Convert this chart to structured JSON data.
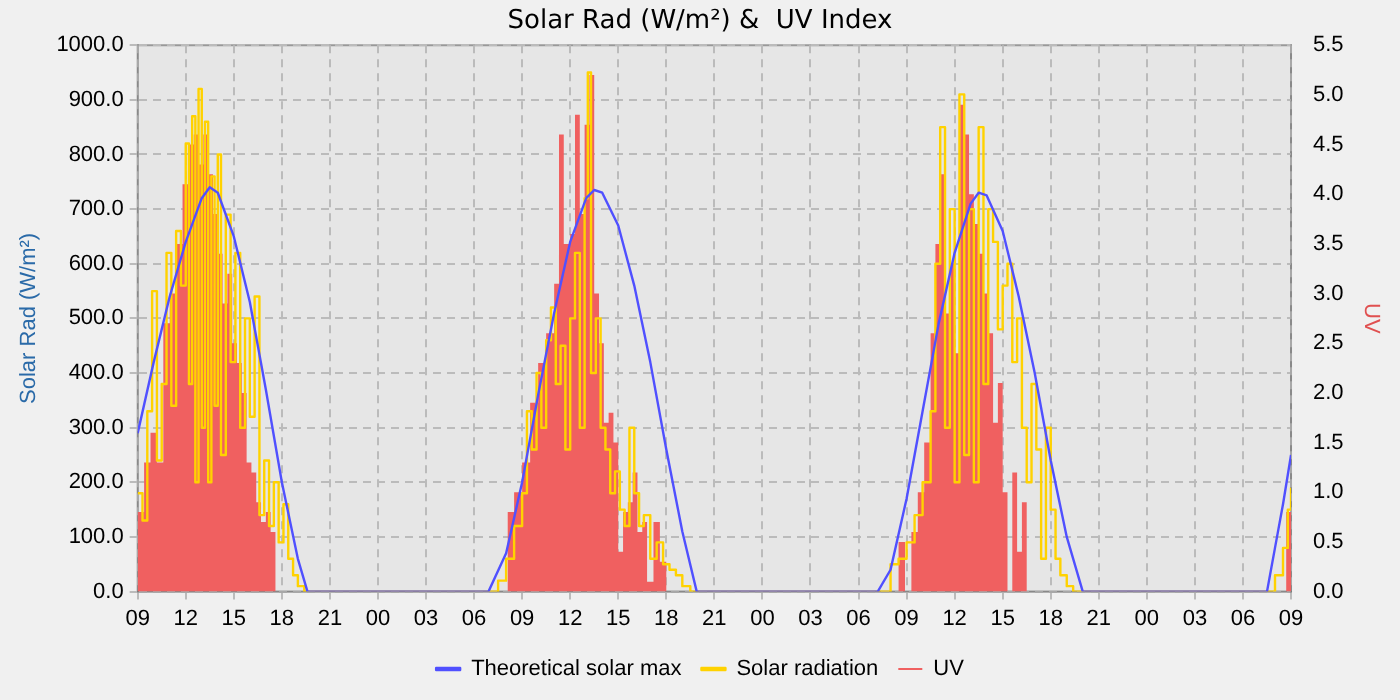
{
  "chart_data": {
    "type": "step",
    "title": "Solar Rad (W/m²) &  UV Index",
    "ylabel": "Solar Rad (W/m²)",
    "y2label": "UV",
    "xlim": [
      9,
      81
    ],
    "xticks": [
      {
        "value": 9,
        "label": "09"
      },
      {
        "value": 12,
        "label": "12"
      },
      {
        "value": 15,
        "label": "15"
      },
      {
        "value": 18,
        "label": "18"
      },
      {
        "value": 21,
        "label": "21"
      },
      {
        "value": 24,
        "label": "00"
      },
      {
        "value": 27,
        "label": "03"
      },
      {
        "value": 30,
        "label": "06"
      },
      {
        "value": 33,
        "label": "09"
      },
      {
        "value": 36,
        "label": "12"
      },
      {
        "value": 39,
        "label": "15"
      },
      {
        "value": 42,
        "label": "18"
      },
      {
        "value": 45,
        "label": "21"
      },
      {
        "value": 48,
        "label": "00"
      },
      {
        "value": 51,
        "label": "03"
      },
      {
        "value": 54,
        "label": "06"
      },
      {
        "value": 57,
        "label": "09"
      },
      {
        "value": 60,
        "label": "12"
      },
      {
        "value": 63,
        "label": "15"
      },
      {
        "value": 66,
        "label": "18"
      },
      {
        "value": 69,
        "label": "21"
      },
      {
        "value": 72,
        "label": "00"
      },
      {
        "value": 75,
        "label": "03"
      },
      {
        "value": 78,
        "label": "06"
      },
      {
        "value": 81,
        "label": "09"
      }
    ],
    "ylim": [
      0,
      1000
    ],
    "yticks": [
      {
        "value": 0,
        "label": "0.0"
      },
      {
        "value": 100,
        "label": "100.0"
      },
      {
        "value": 200,
        "label": "200.0"
      },
      {
        "value": 300,
        "label": "300.0"
      },
      {
        "value": 400,
        "label": "400.0"
      },
      {
        "value": 500,
        "label": "500.0"
      },
      {
        "value": 600,
        "label": "600.0"
      },
      {
        "value": 700,
        "label": "700.0"
      },
      {
        "value": 800,
        "label": "800.0"
      },
      {
        "value": 900,
        "label": "900.0"
      },
      {
        "value": 1000,
        "label": "1000.0"
      }
    ],
    "y2lim": [
      0,
      5.5
    ],
    "y2ticks": [
      {
        "value": 0,
        "label": "0.0"
      },
      {
        "value": 0.5,
        "label": "0.5"
      },
      {
        "value": 1,
        "label": "1.0"
      },
      {
        "value": 1.5,
        "label": "1.5"
      },
      {
        "value": 2,
        "label": "2.0"
      },
      {
        "value": 2.5,
        "label": "2.5"
      },
      {
        "value": 3,
        "label": "3.0"
      },
      {
        "value": 3.5,
        "label": "3.5"
      },
      {
        "value": 4,
        "label": "4.0"
      },
      {
        "value": 4.5,
        "label": "4.5"
      },
      {
        "value": 5,
        "label": "5.0"
      },
      {
        "value": 5.5,
        "label": "5.5"
      }
    ],
    "grid": true,
    "legend": "bottom",
    "series": [
      {
        "name": "UV",
        "type": "area",
        "axis": "y2",
        "color": "#f06060",
        "x": [
          9,
          9.4,
          9.8,
          10.2,
          10.6,
          11,
          11.4,
          11.8,
          12.2,
          12.5,
          12.8,
          13.1,
          13.4,
          13.7,
          14,
          14.3,
          14.6,
          14.9,
          15.2,
          15.5,
          15.8,
          16.1,
          16.4,
          16.7,
          17,
          17.3,
          17.6,
          31.9,
          32.1,
          32.5,
          33,
          33.5,
          34,
          34.5,
          35,
          35.3,
          35.6,
          36,
          36.3,
          36.6,
          36.9,
          37.2,
          37.5,
          37.8,
          38.1,
          38.4,
          38.7,
          39,
          39.3,
          39.6,
          39.9,
          40.2,
          40.5,
          40.8,
          41.2,
          41.6,
          42,
          56.5,
          56.9,
          57.3,
          57.7,
          58.1,
          58.5,
          58.8,
          59.1,
          59.4,
          59.7,
          60,
          60.3,
          60.6,
          60.9,
          61.2,
          61.5,
          61.8,
          62.1,
          62.4,
          62.7,
          63,
          63.3,
          63.6,
          63.9,
          64.2,
          64.5,
          80.6,
          80.7,
          81
        ],
        "values": [
          0.8,
          1.3,
          1.6,
          1.3,
          2.7,
          3.0,
          3.5,
          4.1,
          4.5,
          4.6,
          4.3,
          4.6,
          4.2,
          3.8,
          3.4,
          2.9,
          3.2,
          2.5,
          2.3,
          2.0,
          1.3,
          1.2,
          0.9,
          0.7,
          0.8,
          0.6,
          0,
          0,
          0.8,
          1.0,
          1.3,
          1.9,
          2.3,
          2.6,
          3.1,
          4.6,
          3.5,
          3.6,
          4.8,
          3.8,
          4.7,
          5.2,
          3.0,
          2.5,
          1.7,
          1.8,
          1.5,
          0.4,
          0.8,
          0.9,
          1.2,
          0.6,
          0.7,
          0.1,
          0.7,
          0.3,
          0,
          0.5,
          0,
          0.6,
          1.0,
          1.5,
          2.6,
          3.5,
          4.2,
          2.8,
          3.3,
          2.4,
          4.9,
          4.6,
          4.0,
          3.7,
          3.4,
          3.0,
          2.6,
          1.7,
          2.1,
          1.0,
          0,
          1.2,
          0.4,
          0.9,
          0,
          0,
          0.8,
          1.0
        ]
      },
      {
        "name": "Solar radiation",
        "color": "#ffd200",
        "x": [
          9,
          9.3,
          9.6,
          9.9,
          10.2,
          10.5,
          10.8,
          11.1,
          11.4,
          11.7,
          12,
          12.2,
          12.4,
          12.6,
          12.8,
          13,
          13.2,
          13.4,
          13.6,
          13.8,
          14,
          14.2,
          14.5,
          14.8,
          15.1,
          15.4,
          15.7,
          16,
          16.3,
          16.6,
          16.9,
          17.2,
          17.5,
          17.8,
          18.1,
          18.4,
          18.7,
          19,
          19.4,
          31.5,
          32,
          32.5,
          33,
          33.3,
          33.6,
          33.9,
          34.2,
          34.5,
          34.8,
          35.1,
          35.4,
          35.7,
          36,
          36.3,
          36.6,
          36.9,
          37.1,
          37.3,
          37.6,
          37.9,
          38.2,
          38.5,
          38.8,
          39.1,
          39.4,
          39.7,
          40,
          40.3,
          40.6,
          41,
          41.4,
          41.8,
          42.2,
          42.6,
          43,
          43.5,
          56,
          56.5,
          57,
          57.5,
          58,
          58.5,
          58.8,
          59.1,
          59.4,
          59.7,
          60,
          60.3,
          60.6,
          60.9,
          61.2,
          61.5,
          61.8,
          62.1,
          62.4,
          62.7,
          63,
          63.3,
          63.6,
          63.9,
          64.2,
          64.5,
          64.8,
          65.1,
          65.4,
          65.7,
          66,
          66.3,
          66.6,
          67,
          67.4,
          80,
          80.5,
          80.8,
          81
        ],
        "values": [
          180,
          130,
          330,
          550,
          240,
          380,
          620,
          340,
          660,
          560,
          820,
          380,
          870,
          200,
          920,
          300,
          860,
          200,
          760,
          340,
          800,
          250,
          690,
          420,
          620,
          300,
          500,
          320,
          540,
          140,
          240,
          120,
          200,
          90,
          160,
          60,
          30,
          10,
          0,
          20,
          60,
          120,
          180,
          330,
          260,
          400,
          300,
          460,
          520,
          380,
          450,
          260,
          500,
          620,
          300,
          720,
          950,
          400,
          500,
          300,
          260,
          180,
          220,
          150,
          120,
          300,
          180,
          120,
          140,
          60,
          90,
          50,
          40,
          30,
          10,
          0,
          50,
          60,
          90,
          140,
          200,
          330,
          600,
          850,
          300,
          700,
          200,
          910,
          250,
          700,
          200,
          850,
          380,
          700,
          640,
          480,
          560,
          600,
          420,
          500,
          300,
          200,
          380,
          260,
          60,
          300,
          150,
          60,
          30,
          10,
          0,
          30,
          80,
          150,
          190
        ]
      },
      {
        "name": "Theoretical solar max",
        "type": "line",
        "color": "#5050ff",
        "x": [
          9,
          10,
          11,
          12,
          13,
          13.5,
          14,
          15,
          16,
          17,
          18,
          19,
          19.6,
          30.9,
          32,
          33,
          34,
          35,
          36,
          37,
          37.5,
          38,
          39,
          40,
          41,
          42,
          43,
          43.9,
          55.2,
          56,
          57,
          58,
          59,
          60,
          61,
          61.5,
          62,
          63,
          64,
          65,
          66,
          67,
          68,
          79.5,
          80,
          80.5,
          81
        ],
        "values": [
          290,
          420,
          540,
          640,
          720,
          740,
          730,
          650,
          530,
          370,
          200,
          60,
          0,
          0,
          70,
          200,
          360,
          510,
          640,
          720,
          735,
          730,
          670,
          560,
          420,
          260,
          110,
          0,
          0,
          40,
          170,
          330,
          490,
          620,
          710,
          730,
          725,
          660,
          540,
          400,
          240,
          100,
          0,
          0,
          80,
          160,
          250
        ]
      }
    ]
  }
}
